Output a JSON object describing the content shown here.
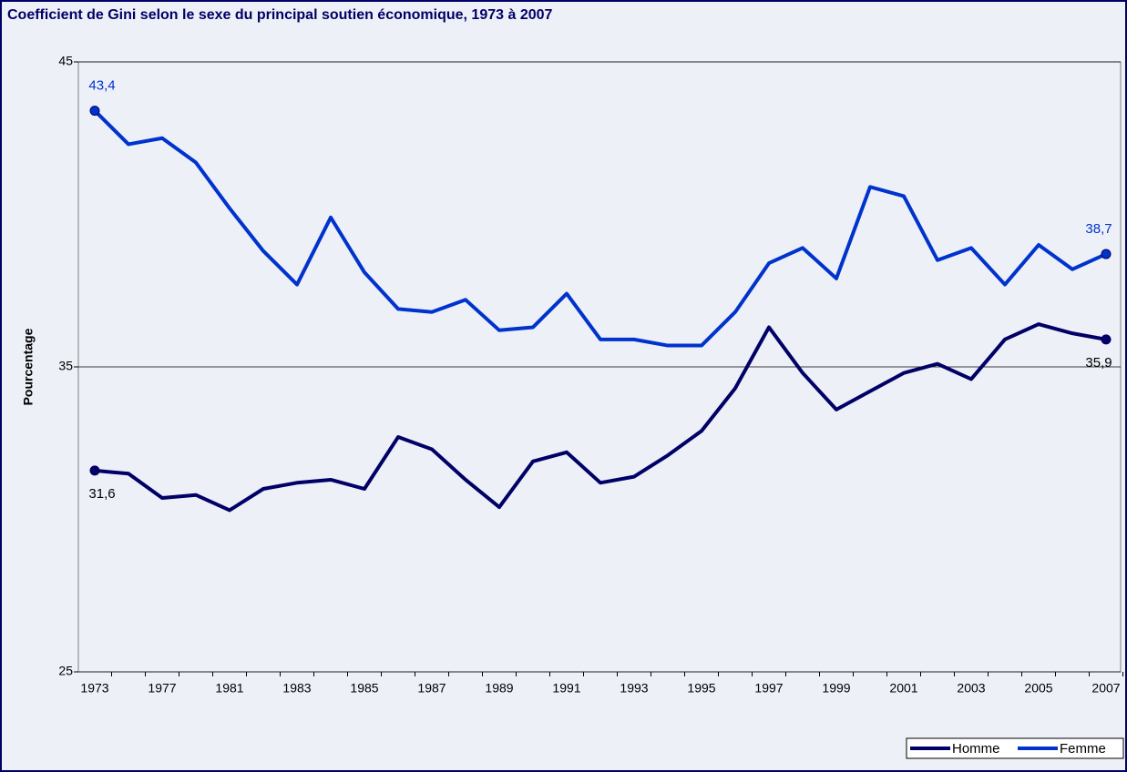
{
  "chart_data": {
    "type": "line",
    "title": "Coefficient de Gini selon le sexe du principal soutien économique, 1973 à 2007",
    "y_label": "Pourcentage",
    "categories": [
      "1973",
      null,
      "1977",
      null,
      "1981",
      null,
      "1983",
      null,
      "1985",
      null,
      "1987",
      null,
      "1989",
      null,
      "1991",
      null,
      "1993",
      null,
      "1995",
      null,
      "1997",
      null,
      "1999",
      null,
      "2001",
      null,
      "2003",
      null,
      "2005",
      null,
      "2007"
    ],
    "series": [
      {
        "name": "Homme",
        "color": "#000066",
        "values": [
          31.6,
          31.5,
          30.7,
          30.8,
          30.3,
          31.0,
          31.2,
          31.3,
          31.0,
          32.7,
          32.3,
          31.3,
          30.4,
          31.9,
          32.2,
          31.2,
          31.4,
          32.1,
          32.9,
          34.3,
          36.3,
          34.8,
          33.6,
          34.2,
          34.8,
          35.1,
          34.6,
          35.9,
          36.4,
          36.1,
          35.9
        ],
        "value_labels": [
          "31,6",
          null,
          null,
          null,
          null,
          null,
          null,
          null,
          null,
          null,
          null,
          null,
          null,
          null,
          null,
          null,
          null,
          null,
          null,
          null,
          null,
          null,
          null,
          null,
          null,
          null,
          null,
          null,
          null,
          null,
          "35,9"
        ]
      },
      {
        "name": "Femme",
        "color": "#0033cc",
        "values": [
          43.4,
          42.3,
          42.5,
          41.7,
          40.2,
          38.8,
          37.7,
          39.9,
          38.1,
          36.9,
          36.8,
          37.2,
          36.2,
          36.3,
          37.4,
          35.9,
          35.9,
          35.7,
          35.7,
          36.8,
          38.4,
          38.9,
          37.9,
          40.9,
          40.6,
          38.5,
          38.9,
          37.7,
          39.0,
          38.2,
          38.7
        ],
        "value_labels": [
          "43,4",
          null,
          null,
          null,
          null,
          null,
          null,
          null,
          null,
          null,
          null,
          null,
          null,
          null,
          null,
          null,
          null,
          null,
          null,
          null,
          null,
          null,
          null,
          null,
          null,
          null,
          null,
          null,
          null,
          null,
          "38,7"
        ]
      }
    ],
    "ylim": [
      25,
      45
    ],
    "yticks": [
      25,
      35,
      45
    ],
    "grid": true,
    "legend": "bottom-right"
  }
}
